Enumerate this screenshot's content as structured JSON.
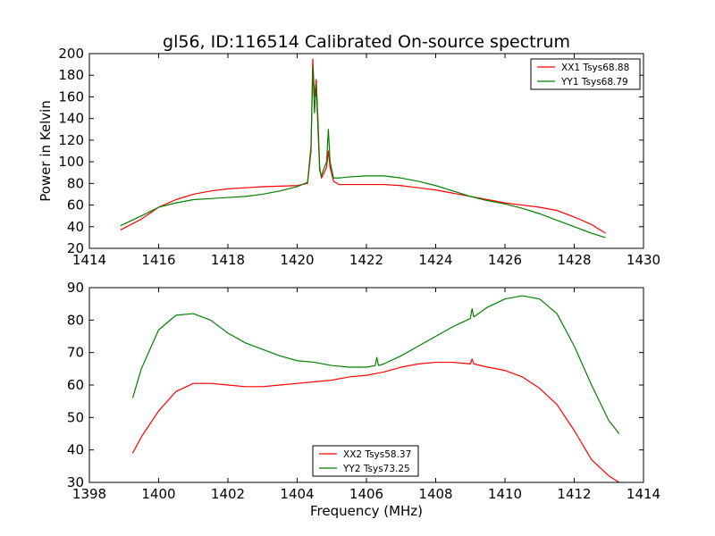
{
  "chart_data": [
    {
      "type": "line",
      "title": "gl56, ID:116514 Calibrated On-source spectrum",
      "xlabel": "",
      "ylabel": "Power in Kelvin",
      "xlim": [
        1414,
        1430
      ],
      "ylim": [
        20,
        200
      ],
      "xticks": [
        "1414",
        "1416",
        "1418",
        "1420",
        "1422",
        "1424",
        "1426",
        "1428",
        "1430"
      ],
      "yticks": [
        "20",
        "40",
        "60",
        "80",
        "100",
        "120",
        "140",
        "160",
        "180",
        "200"
      ],
      "grid": false,
      "legend_position": "top-right",
      "series": [
        {
          "name": "XX1 Tsys68.88",
          "color": "#ff0000",
          "x": [
            1414.9,
            1415.5,
            1416.0,
            1416.5,
            1417.0,
            1417.5,
            1418.0,
            1418.5,
            1419.0,
            1419.5,
            1420.0,
            1420.3,
            1420.4,
            1420.45,
            1420.5,
            1420.55,
            1420.6,
            1420.65,
            1420.7,
            1420.75,
            1420.85,
            1420.9,
            1420.95,
            1421.05,
            1421.2,
            1421.5,
            1422.0,
            1422.5,
            1423.0,
            1423.5,
            1424.0,
            1424.5,
            1425.0,
            1425.5,
            1426.0,
            1426.5,
            1427.0,
            1427.5,
            1428.0,
            1428.5,
            1428.9
          ],
          "values": [
            37,
            47,
            58,
            65,
            70,
            73,
            75,
            76,
            77,
            77.5,
            78,
            80,
            110,
            195,
            160,
            176,
            140,
            95,
            85,
            88,
            95,
            110,
            95,
            82,
            79,
            79,
            79,
            79,
            78,
            76,
            74,
            71,
            68,
            65,
            62,
            60,
            58,
            55,
            49,
            42,
            34
          ]
        },
        {
          "name": "YY1 Tsys68.79",
          "color": "#008000",
          "x": [
            1414.9,
            1415.5,
            1416.0,
            1416.5,
            1417.0,
            1417.5,
            1418.0,
            1418.5,
            1419.0,
            1419.5,
            1420.0,
            1420.3,
            1420.4,
            1420.45,
            1420.5,
            1420.55,
            1420.6,
            1420.65,
            1420.7,
            1420.75,
            1420.85,
            1420.9,
            1420.95,
            1421.05,
            1421.2,
            1421.5,
            1422.0,
            1422.5,
            1423.0,
            1423.5,
            1424.0,
            1424.5,
            1425.0,
            1425.5,
            1426.0,
            1426.5,
            1427.0,
            1427.5,
            1428.0,
            1428.5,
            1428.9
          ],
          "values": [
            41,
            50,
            58,
            62,
            65,
            66,
            67,
            68,
            70,
            73,
            77,
            81,
            115,
            188,
            145,
            172,
            130,
            92,
            87,
            92,
            100,
            130,
            100,
            85,
            85,
            86,
            87,
            87,
            85,
            82,
            78,
            73,
            68,
            64,
            61,
            57,
            52,
            46,
            40,
            34,
            30
          ]
        }
      ]
    },
    {
      "type": "line",
      "title": "",
      "xlabel": "Frequency (MHz)",
      "ylabel": "",
      "xlim": [
        1398,
        1414
      ],
      "ylim": [
        30,
        90
      ],
      "xticks": [
        "1398",
        "1400",
        "1402",
        "1404",
        "1406",
        "1408",
        "1410",
        "1412",
        "1414"
      ],
      "yticks": [
        "30",
        "40",
        "50",
        "60",
        "70",
        "80",
        "90"
      ],
      "grid": false,
      "legend_position": "bottom-center",
      "series": [
        {
          "name": "XX2 Tsys58.37",
          "color": "#ff0000",
          "x": [
            1399.25,
            1399.5,
            1400.0,
            1400.5,
            1401.0,
            1401.5,
            1402.0,
            1402.5,
            1403.0,
            1403.5,
            1404.0,
            1404.5,
            1405.0,
            1405.5,
            1406.0,
            1406.5,
            1407.0,
            1407.5,
            1408.0,
            1408.5,
            1409.0,
            1409.05,
            1409.1,
            1409.5,
            1410.0,
            1410.5,
            1411.0,
            1411.5,
            1412.0,
            1412.5,
            1413.0,
            1413.3
          ],
          "values": [
            39,
            44,
            52,
            58,
            60.5,
            60.5,
            60,
            59.5,
            59.5,
            60,
            60.5,
            61,
            61.5,
            62.5,
            63,
            64,
            65.5,
            66.5,
            67,
            67,
            66.5,
            68,
            66.5,
            65.5,
            64.5,
            62.5,
            59,
            54,
            46,
            37,
            32,
            30
          ]
        },
        {
          "name": "YY2 Tsys73.25",
          "color": "#008000",
          "x": [
            1399.25,
            1399.5,
            1400.0,
            1400.5,
            1401.0,
            1401.5,
            1402.0,
            1402.5,
            1403.0,
            1403.5,
            1404.0,
            1404.5,
            1405.0,
            1405.5,
            1406.0,
            1406.25,
            1406.3,
            1406.35,
            1406.5,
            1407.0,
            1407.5,
            1408.0,
            1408.5,
            1409.0,
            1409.05,
            1409.1,
            1409.5,
            1410.0,
            1410.5,
            1411.0,
            1411.5,
            1412.0,
            1412.5,
            1413.0,
            1413.3
          ],
          "values": [
            56,
            65,
            77,
            81.5,
            82,
            80,
            76,
            73,
            71,
            69,
            67.5,
            67,
            66,
            65.5,
            65.5,
            66,
            68.5,
            66,
            66.5,
            69,
            72,
            75,
            78,
            80.5,
            83.5,
            81,
            84,
            86.5,
            87.5,
            86.5,
            82,
            72,
            60,
            49,
            45
          ]
        }
      ]
    }
  ]
}
